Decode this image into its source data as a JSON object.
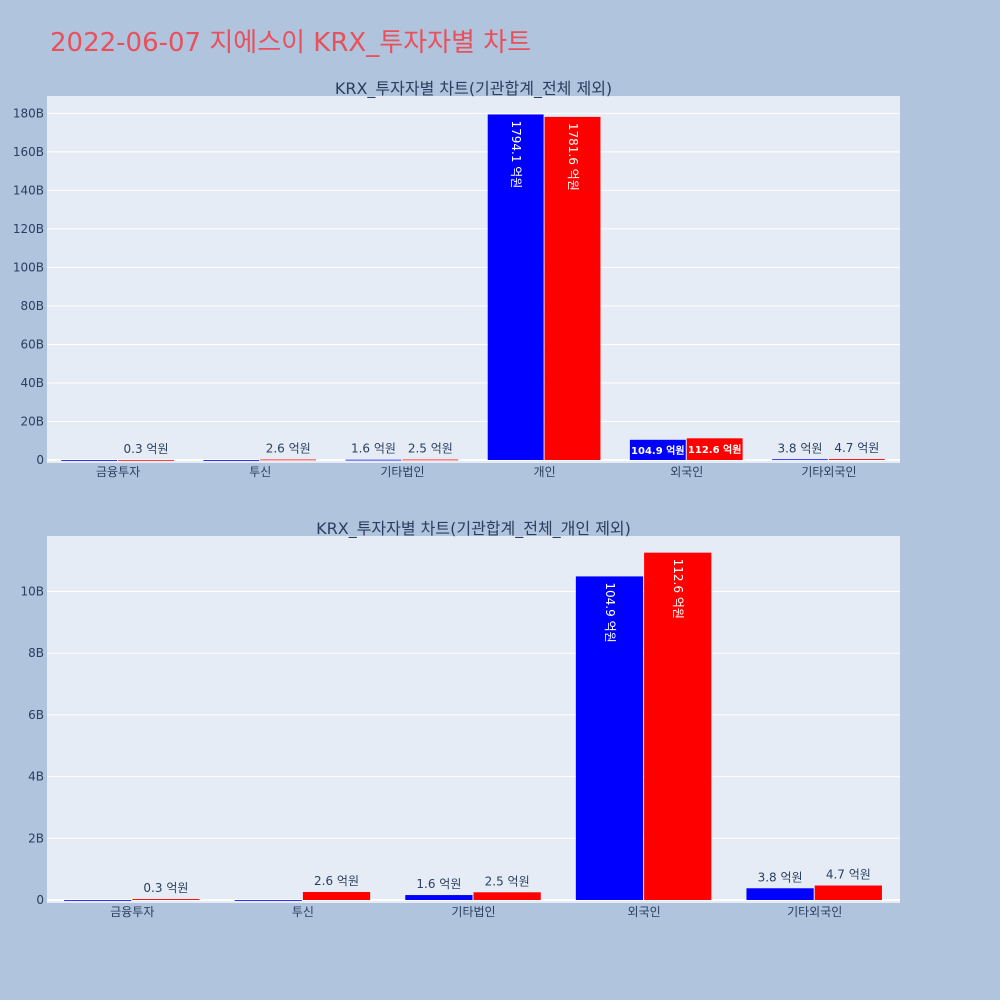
{
  "title": "2022-06-07 지에스이 KRX_투자자별 차트",
  "colors": {
    "buy": "#0000ff",
    "sell": "#ff0000",
    "title": "#e8505b",
    "plot_bg": "#e5ecf6",
    "page_bg": "#b0c4de"
  },
  "chart_data": [
    {
      "type": "bar",
      "title": "KRX_투자자별 차트(기관합계_전체 제외)",
      "categories": [
        "금융투자",
        "투신",
        "기타법인",
        "개인",
        "외국인",
        "기타외국인"
      ],
      "series": [
        {
          "color": "#0000ff",
          "values": [
            0,
            0,
            0.16,
            179.41,
            10.49,
            0.38
          ],
          "labels": [
            "",
            "",
            "1.6 억원",
            "1794.1 억원",
            "104.9 억원",
            "3.8 억원"
          ]
        },
        {
          "color": "#ff0000",
          "values": [
            0.03,
            0.26,
            0.25,
            178.16,
            11.26,
            0.47
          ],
          "labels": [
            "0.3 억원",
            "2.6 억원",
            "2.5 억원",
            "1781.6 억원",
            "112.6 억원",
            "4.7 억원"
          ]
        }
      ],
      "ylim": [
        0,
        189
      ],
      "yticks": [
        0,
        20,
        40,
        60,
        80,
        100,
        120,
        140,
        160,
        180
      ],
      "ytick_labels": [
        "0",
        "20B",
        "40B",
        "60B",
        "80B",
        "100B",
        "120B",
        "140B",
        "160B",
        "180B"
      ],
      "grid": true
    },
    {
      "type": "bar",
      "title": "KRX_투자자별 차트(기관합계_전체_개인 제외)",
      "categories": [
        "금융투자",
        "투신",
        "기타법인",
        "외국인",
        "기타외국인"
      ],
      "series": [
        {
          "color": "#0000ff",
          "values": [
            0,
            0,
            0.16,
            10.49,
            0.38
          ],
          "labels": [
            "",
            "",
            "1.6 억원",
            "104.9 억원",
            "3.8 억원"
          ]
        },
        {
          "color": "#ff0000",
          "values": [
            0.03,
            0.26,
            0.25,
            11.26,
            0.47
          ],
          "labels": [
            "0.3 억원",
            "2.6 억원",
            "2.5 억원",
            "112.6 억원",
            "4.7 억원"
          ]
        }
      ],
      "ylim": [
        0,
        11.8
      ],
      "yticks": [
        0,
        2,
        4,
        6,
        8,
        10
      ],
      "ytick_labels": [
        "0",
        "2B",
        "4B",
        "6B",
        "8B",
        "10B"
      ],
      "grid": true
    }
  ]
}
